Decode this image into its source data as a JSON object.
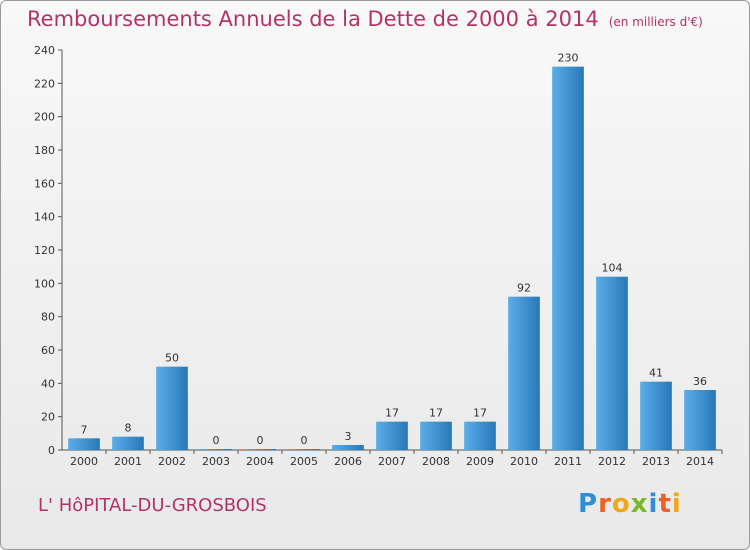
{
  "title": "Remboursements Annuels de la Dette de 2000 à 2014",
  "unit": "(en milliers d'€)",
  "commune": "L' HôPITAL-DU-GROSBOIS",
  "logo": {
    "text": "Proxiti",
    "letters": [
      {
        "ch": "P",
        "color": "#2f8fd6"
      },
      {
        "ch": "r",
        "color": "#e9622a"
      },
      {
        "ch": "o",
        "color": "#f0a81a"
      },
      {
        "ch": "x",
        "color": "#7ab829"
      },
      {
        "ch": "i",
        "color": "#2f8fd6"
      },
      {
        "ch": "t",
        "color": "#e9622a"
      },
      {
        "ch": "i",
        "color": "#f0a81a"
      }
    ]
  },
  "colors": {
    "bar_light": "#5aaee8",
    "bar_dark": "#2878b8",
    "title": "#b0346a"
  },
  "chart_data": {
    "type": "bar",
    "categories": [
      "2000",
      "2001",
      "2002",
      "2003",
      "2004",
      "2005",
      "2006",
      "2007",
      "2008",
      "2009",
      "2010",
      "2011",
      "2012",
      "2013",
      "2014"
    ],
    "values": [
      7,
      8,
      50,
      0,
      0,
      0,
      3,
      17,
      17,
      17,
      92,
      230,
      104,
      41,
      36
    ],
    "ylim": [
      0,
      240
    ],
    "yticks": [
      0,
      20,
      40,
      60,
      80,
      100,
      120,
      140,
      160,
      180,
      200,
      220,
      240
    ],
    "grid": false,
    "xlabel": "",
    "ylabel": ""
  }
}
